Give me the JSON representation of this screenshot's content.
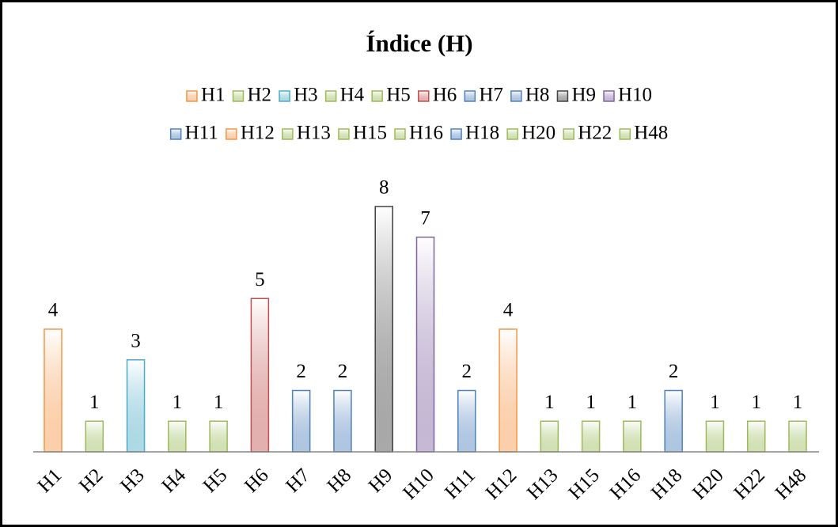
{
  "chart_data": {
    "type": "bar",
    "title": "Índice (H)",
    "categories": [
      "H1",
      "H2",
      "H3",
      "H4",
      "H5",
      "H6",
      "H7",
      "H8",
      "H9",
      "H10",
      "H11",
      "H12",
      "H13",
      "H15",
      "H16",
      "H18",
      "H20",
      "H22",
      "H48"
    ],
    "values": [
      4,
      1,
      3,
      1,
      1,
      5,
      2,
      2,
      8,
      7,
      2,
      4,
      1,
      1,
      1,
      2,
      1,
      1,
      1
    ],
    "colors": [
      "#f79646",
      "#9bbb59",
      "#4bacc6",
      "#9bbb59",
      "#9bbb59",
      "#c0504d",
      "#4f81bd",
      "#4f81bd",
      "#404040",
      "#8064a2",
      "#4f81bd",
      "#f79646",
      "#9bbb59",
      "#9bbb59",
      "#9bbb59",
      "#4f81bd",
      "#9bbb59",
      "#9bbb59",
      "#9bbb59"
    ],
    "legend": "top"
  }
}
